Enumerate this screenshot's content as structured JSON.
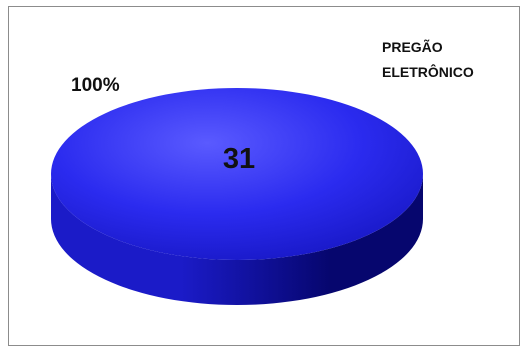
{
  "chart_data": {
    "type": "pie",
    "style": "3d",
    "slices": [
      {
        "label": "PREGÃO ELETRÔNICO",
        "value": 31,
        "percent": "100%",
        "color": "#2e2ef0"
      }
    ],
    "data_label_value": "31",
    "data_label_percent": "100%",
    "legend": {
      "text_line1": "PREGÃO",
      "text_line2": "ELETRÔNICO",
      "position": "top-right"
    }
  },
  "colors": {
    "top_light": "#5a5aff",
    "top_main": "#2b2bef",
    "top_dark": "#1717c4",
    "side_light": "#1b1bc8",
    "side_dark": "#06066e",
    "border": "#8c8c8c"
  }
}
